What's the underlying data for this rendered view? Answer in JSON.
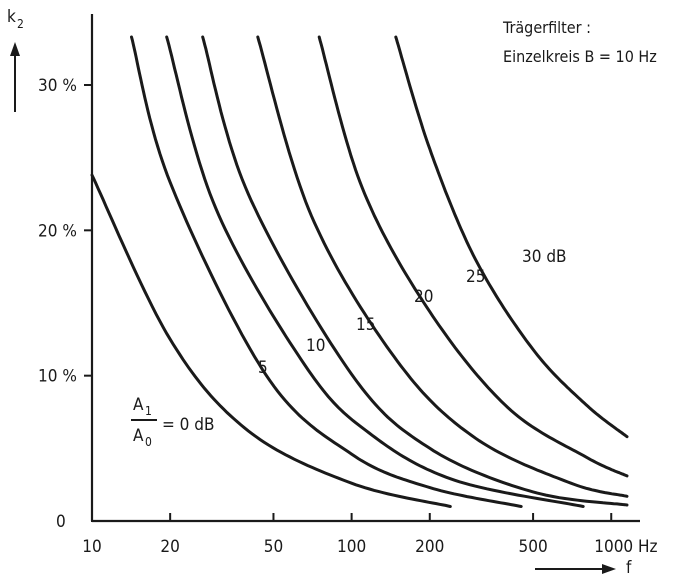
{
  "chart_data": {
    "type": "line",
    "title": "",
    "annotation": {
      "line1": "Trägerfilter :",
      "line2": "Einzelkreis  B = 10 Hz"
    },
    "ylabel": "k",
    "ylabel_sub": "2",
    "xlabel": "f",
    "x_scale": "log",
    "xlim": [
      10,
      1150
    ],
    "ylim": [
      0,
      34
    ],
    "x_ticks": [
      10,
      20,
      50,
      100,
      200,
      500,
      1000
    ],
    "x_tick_labels": [
      "10",
      "20",
      "50",
      "100",
      "200",
      "500",
      "1000 Hz"
    ],
    "y_ticks": [
      0,
      10,
      20,
      30
    ],
    "y_tick_labels": [
      "0",
      "10 %",
      "20 %",
      "30 %"
    ],
    "legend_fraction": {
      "numerator": "A",
      "numerator_sub": "1",
      "denominator": "A",
      "denominator_sub": "0"
    },
    "series": [
      {
        "name": "= 0 dB",
        "points": [
          [
            10,
            23.8
          ],
          [
            20,
            12.5
          ],
          [
            40,
            6.2
          ],
          [
            100,
            2.6
          ],
          [
            240,
            1.0
          ]
        ]
      },
      {
        "name": "5",
        "points": [
          [
            14.2,
            33.3
          ],
          [
            20,
            23.3
          ],
          [
            47,
            10.0
          ],
          [
            100,
            4.6
          ],
          [
            200,
            2.3
          ],
          [
            450,
            1.0
          ]
        ]
      },
      {
        "name": "10",
        "points": [
          [
            19.4,
            33.3
          ],
          [
            30,
            21.5
          ],
          [
            68,
            10.4
          ],
          [
            120,
            5.9
          ],
          [
            250,
            2.8
          ],
          [
            780,
            1.0
          ]
        ]
      },
      {
        "name": "15",
        "points": [
          [
            26.7,
            33.3
          ],
          [
            40,
            22.5
          ],
          [
            100,
            10.1
          ],
          [
            200,
            5.0
          ],
          [
            500,
            2.0
          ],
          [
            1150,
            1.1
          ]
        ]
      },
      {
        "name": "20",
        "points": [
          [
            43.5,
            33.3
          ],
          [
            70,
            21.0
          ],
          [
            150,
            11.0
          ],
          [
            300,
            5.7
          ],
          [
            700,
            2.6
          ],
          [
            1150,
            1.7
          ]
        ]
      },
      {
        "name": "25",
        "points": [
          [
            75,
            33.3
          ],
          [
            110,
            22.9
          ],
          [
            200,
            14.4
          ],
          [
            400,
            7.8
          ],
          [
            800,
            4.4
          ],
          [
            1150,
            3.1
          ]
        ]
      },
      {
        "name": "30 dB",
        "points": [
          [
            148,
            33.3
          ],
          [
            200,
            25.6
          ],
          [
            300,
            18.0
          ],
          [
            500,
            11.8
          ],
          [
            800,
            8.0
          ],
          [
            1150,
            5.8
          ]
        ]
      }
    ],
    "grid": false
  }
}
